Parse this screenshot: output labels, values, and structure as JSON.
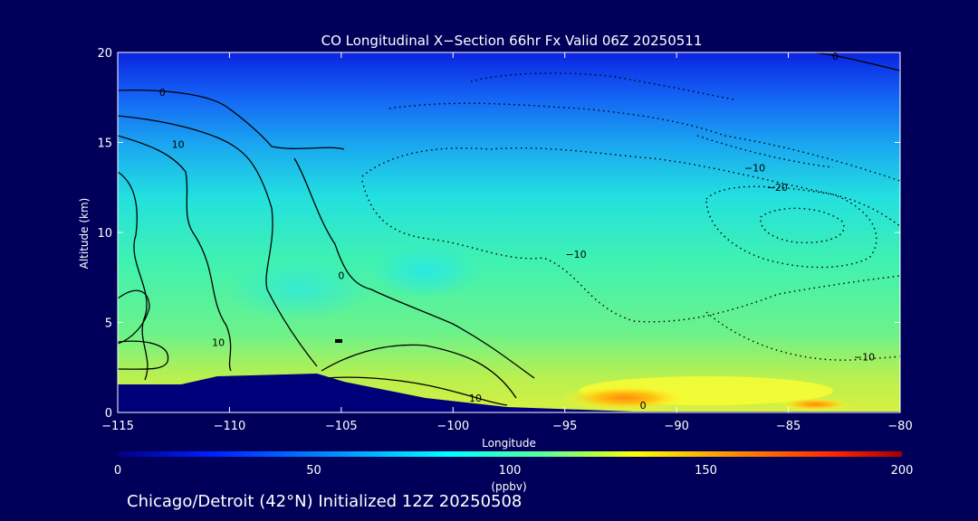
{
  "chart_data": {
    "type": "heatmap",
    "title": "CO Longitudinal X−Section 66hr  Fx Valid 06Z 20250511",
    "xlabel": "Longitude",
    "ylabel": "Altitude (km)",
    "xlim": [
      -115,
      -80
    ],
    "ylim": [
      0,
      20
    ],
    "x_ticks": [
      -115,
      -110,
      -105,
      -100,
      -95,
      -90,
      -85,
      -80
    ],
    "x_tick_labels": [
      "−115",
      "−110",
      "−105",
      "−100",
      "−95",
      "−90",
      "−85",
      "−80"
    ],
    "y_ticks": [
      0,
      5,
      10,
      15,
      20
    ],
    "y_tick_labels": [
      "0",
      "5",
      "10",
      "15",
      "20"
    ],
    "colorbar": {
      "min": 0,
      "max": 200,
      "ticks": [
        0,
        50,
        100,
        150,
        200
      ],
      "tick_labels": [
        "0",
        "50",
        "100",
        "150",
        "200"
      ],
      "unit": "(ppbv)"
    },
    "contour_labels": [
      {
        "text": "0",
        "lon": -113,
        "alt": 17.6
      },
      {
        "text": "10",
        "lon": -112.3,
        "alt": 14.7
      },
      {
        "text": "0",
        "lon": -105,
        "alt": 7.4
      },
      {
        "text": "10",
        "lon": -110.5,
        "alt": 3.7
      },
      {
        "text": "10",
        "lon": -99,
        "alt": 0.6
      },
      {
        "text": "0",
        "lon": -91.5,
        "alt": 0.2
      },
      {
        "text": "0",
        "lon": -82.9,
        "alt": 19.6
      },
      {
        "text": "−10",
        "lon": -86.5,
        "alt": 13.4
      },
      {
        "text": "−20",
        "lon": -85.5,
        "alt": 12.3
      },
      {
        "text": "−10",
        "lon": -94.5,
        "alt": 8.6
      },
      {
        "text": "−10",
        "lon": -81.6,
        "alt": 2.9
      }
    ],
    "footer": "Chicago/Detroit (42°N) Initialized 12Z 20250508",
    "colors": {
      "background": "#00005a",
      "text": "#ffffff",
      "terrain": "#00007a"
    }
  }
}
